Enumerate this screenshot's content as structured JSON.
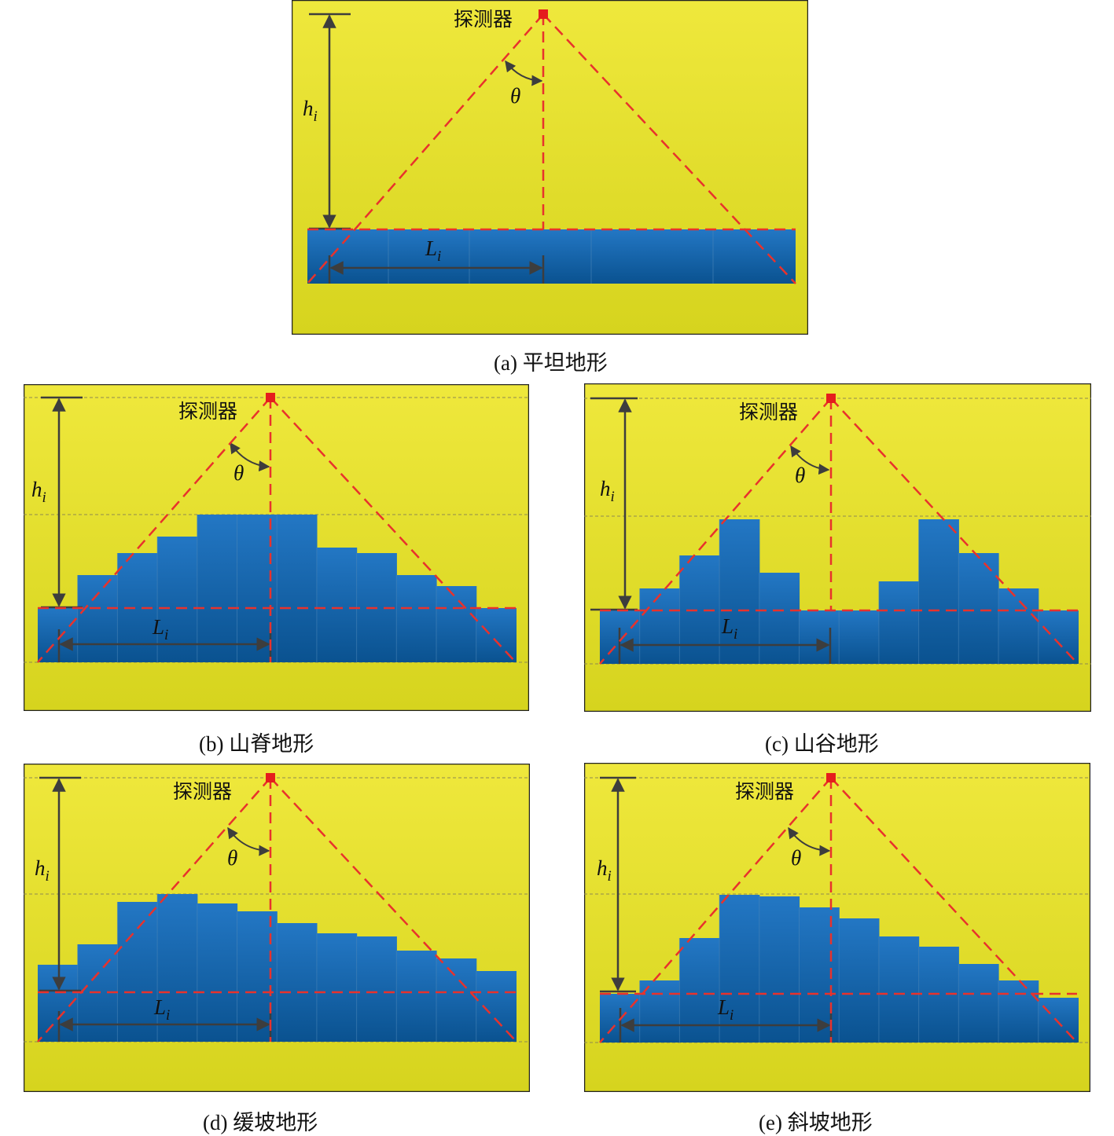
{
  "colors": {
    "background_top": "#efe83c",
    "background_bottom": "#d6d41e",
    "terrain_top": "#2377c4",
    "terrain_bottom": "#0a5290",
    "rays": "#e8322c",
    "detector": "#e51d1d",
    "arrows": "#3d3d3d",
    "reference_lines": "#8f8a50"
  },
  "labels": {
    "detector": "探测器",
    "angle": "θ",
    "height_main": "h",
    "height_sub": "i",
    "length_main": "L",
    "length_sub": "i"
  },
  "panels": [
    {
      "id": "a",
      "caption": "(a) 平坦地形",
      "terrain": [
        0,
        0,
        0,
        0,
        0
      ],
      "ref_line": false
    },
    {
      "id": "b",
      "caption": "(b) 山脊地形",
      "terrain": [
        0,
        42,
        70,
        91,
        119,
        119,
        119,
        77,
        70,
        42,
        28,
        0
      ],
      "ref_line": true
    },
    {
      "id": "c",
      "caption": "(c) 山谷地形",
      "terrain": [
        0,
        28,
        70,
        116,
        48,
        0,
        0,
        37,
        116,
        73,
        28,
        0
      ],
      "ref_line": true
    },
    {
      "id": "d",
      "caption": "(d) 缓坡地形",
      "terrain": [
        35,
        61,
        115,
        125,
        113,
        103,
        88,
        75,
        71,
        53,
        43,
        27
      ],
      "ref_line": true
    },
    {
      "id": "e",
      "caption": "(e) 斜坡地形",
      "terrain": [
        0,
        17,
        71,
        126,
        124,
        110,
        96,
        73,
        60,
        38,
        17,
        -5
      ],
      "ref_line": true
    }
  ]
}
